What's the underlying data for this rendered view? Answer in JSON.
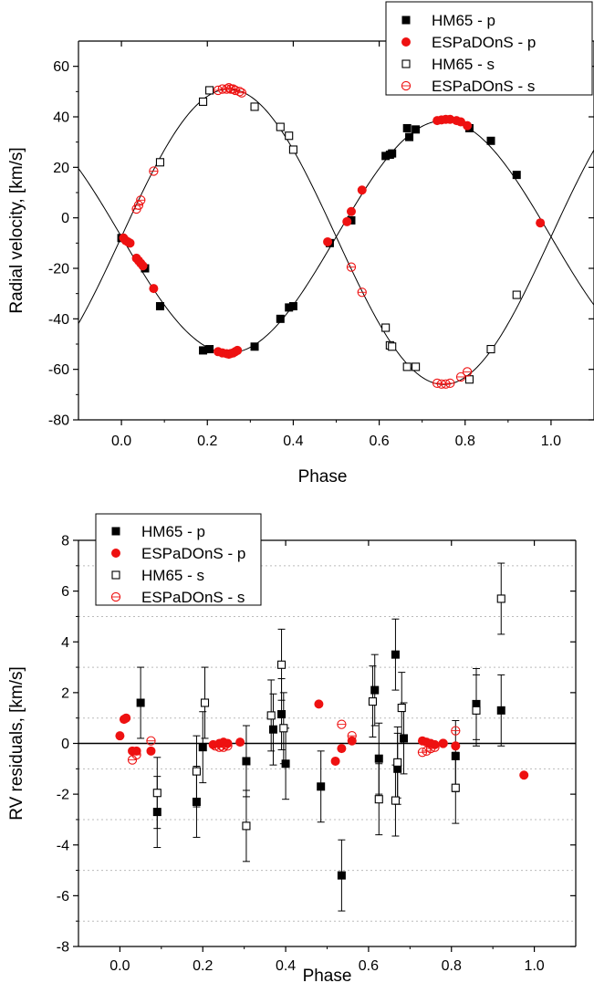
{
  "chart_data": [
    {
      "type": "scatter",
      "xlabel": "Phase",
      "ylabel": "Radial velocity, [km/s]",
      "xlim": [
        -0.1,
        1.1
      ],
      "ylim": [
        -80,
        70
      ],
      "x_ticks": [
        0.0,
        0.2,
        0.4,
        0.6,
        0.8,
        1.0
      ],
      "x_tick_labels": [
        "0.0",
        "0.2",
        "0.4",
        "0.6",
        "0.8",
        "1.0"
      ],
      "y_ticks": [
        -80,
        -60,
        -40,
        -20,
        0,
        20,
        40,
        60
      ],
      "y_tick_labels": [
        "-80",
        "-60",
        "-40",
        "-20",
        "0",
        "20",
        "40",
        "60"
      ],
      "grid": false,
      "legend_position": "top-right",
      "model_curves": {
        "gamma": -7.5,
        "primary_amplitude": 46.0,
        "secondary_amplitude": 58.5
      },
      "series": [
        {
          "name": "HM65 - p",
          "marker": "filled-square",
          "color": "#000000",
          "x": [
            0.0,
            0.055,
            0.09,
            0.19,
            0.205,
            0.31,
            0.37,
            0.39,
            0.4,
            0.485,
            0.535,
            0.615,
            0.625,
            0.63,
            0.665,
            0.67,
            0.685,
            0.81,
            0.86,
            0.92
          ],
          "y": [
            -8,
            -20,
            -35,
            -52.5,
            -52,
            -51,
            -40,
            -35.5,
            -35,
            -10,
            -1,
            24.5,
            25,
            25.5,
            35.5,
            32,
            35,
            35.5,
            30.5,
            17
          ]
        },
        {
          "name": "ESPaDOnS - p",
          "marker": "filled-circle",
          "color": "#ee1111",
          "x": [
            0.005,
            0.01,
            0.015,
            0.02,
            0.035,
            0.04,
            0.045,
            0.05,
            0.075,
            0.225,
            0.235,
            0.245,
            0.25,
            0.255,
            0.26,
            0.265,
            0.27,
            0.48,
            0.525,
            0.535,
            0.56,
            0.735,
            0.745,
            0.755,
            0.765,
            0.78,
            0.79,
            0.805,
            0.975
          ],
          "y": [
            -8,
            -9,
            -9.5,
            -10,
            -16,
            -17,
            -18,
            -19,
            -28,
            -53,
            -53.5,
            -53.8,
            -54,
            -53.7,
            -53.5,
            -53,
            -52.5,
            -9.5,
            -1.5,
            2.5,
            11,
            38.5,
            38.8,
            39,
            39,
            38.5,
            38,
            36.5,
            -2
          ]
        },
        {
          "name": "HM65 - s",
          "marker": "open-square",
          "color": "#000000",
          "x": [
            0.09,
            0.19,
            0.205,
            0.31,
            0.37,
            0.39,
            0.4,
            0.615,
            0.625,
            0.63,
            0.665,
            0.685,
            0.81,
            0.86,
            0.92
          ],
          "y": [
            22,
            46,
            50.5,
            44,
            36,
            32.5,
            27,
            -43.5,
            -50.5,
            -51,
            -59,
            -59,
            -64,
            -52,
            -30.5
          ]
        },
        {
          "name": "ESPaDOnS - s",
          "marker": "open-circle",
          "color": "#ee1111",
          "x": [
            0.035,
            0.04,
            0.045,
            0.075,
            0.225,
            0.235,
            0.245,
            0.25,
            0.255,
            0.26,
            0.265,
            0.275,
            0.28,
            0.535,
            0.56,
            0.735,
            0.745,
            0.755,
            0.765,
            0.79,
            0.805
          ],
          "y": [
            3.5,
            5,
            7,
            18.5,
            50.5,
            51,
            51,
            51.5,
            51,
            51,
            50.5,
            50,
            49.5,
            -19.5,
            -29.5,
            -65.5,
            -65.8,
            -65.8,
            -65.5,
            -63,
            -61
          ]
        }
      ]
    },
    {
      "type": "scatter",
      "xlabel": "Phase",
      "ylabel": "RV residuals, [km/s]",
      "xlim": [
        -0.1,
        1.1
      ],
      "ylim": [
        -8,
        8
      ],
      "x_ticks": [
        0.0,
        0.2,
        0.4,
        0.6,
        0.8,
        1.0
      ],
      "x_tick_labels": [
        "0.0",
        "0.2",
        "0.4",
        "0.6",
        "0.8",
        "1.0"
      ],
      "y_ticks": [
        -8,
        -6,
        -4,
        -2,
        0,
        2,
        4,
        6,
        8
      ],
      "y_tick_labels": [
        "-8",
        "-6",
        "-4",
        "-2",
        "0",
        "2",
        "4",
        "6",
        "8"
      ],
      "grid": "dotted horizontal at odd values",
      "grid_values": [
        -7,
        -5,
        -3,
        -1,
        1,
        3,
        5,
        7
      ],
      "zero_line": true,
      "legend_position": "top-left",
      "error_bar_km_s": 1.4,
      "series": [
        {
          "name": "HM65 - p",
          "marker": "filled-square",
          "color": "#000000",
          "error_bars": true,
          "x": [
            0.05,
            0.09,
            0.185,
            0.2,
            0.305,
            0.37,
            0.39,
            0.4,
            0.485,
            0.535,
            0.615,
            0.625,
            0.665,
            0.67,
            0.685,
            0.81,
            0.86,
            0.92
          ],
          "y": [
            1.6,
            -2.7,
            -2.3,
            -0.15,
            -0.7,
            0.55,
            1.15,
            -0.8,
            -1.7,
            -5.2,
            2.1,
            -0.6,
            3.5,
            -1.0,
            0.2,
            -0.5,
            1.55,
            1.3
          ]
        },
        {
          "name": "ESPaDOnS - p",
          "marker": "filled-circle",
          "color": "#ee1111",
          "error_bars": false,
          "x": [
            0.0,
            0.01,
            0.015,
            0.03,
            0.04,
            0.075,
            0.225,
            0.24,
            0.25,
            0.26,
            0.29,
            0.48,
            0.52,
            0.535,
            0.56,
            0.73,
            0.74,
            0.75,
            0.76,
            0.78,
            0.81,
            0.975
          ],
          "y": [
            0.3,
            0.95,
            1.0,
            -0.3,
            -0.3,
            -0.3,
            -0.05,
            0.0,
            0.05,
            0.0,
            0.05,
            1.55,
            -0.7,
            -0.2,
            0.1,
            0.1,
            0.05,
            0.0,
            -0.05,
            0.0,
            -0.1,
            -1.25
          ]
        },
        {
          "name": "HM65 - s",
          "marker": "open-square",
          "color": "#000000",
          "error_bars": true,
          "x": [
            0.09,
            0.185,
            0.205,
            0.305,
            0.365,
            0.39,
            0.395,
            0.61,
            0.625,
            0.665,
            0.67,
            0.68,
            0.81,
            0.86,
            0.92
          ],
          "y": [
            -1.95,
            -1.1,
            1.6,
            -3.25,
            1.1,
            3.1,
            0.6,
            1.65,
            -2.2,
            -2.25,
            -0.75,
            1.4,
            -1.75,
            1.3,
            5.7
          ]
        },
        {
          "name": "ESPaDOnS - s",
          "marker": "open-circle",
          "color": "#ee1111",
          "error_bars": false,
          "x": [
            0.03,
            0.04,
            0.075,
            0.23,
            0.24,
            0.245,
            0.25,
            0.255,
            0.26,
            0.535,
            0.56,
            0.73,
            0.74,
            0.75,
            0.76,
            0.78,
            0.81
          ],
          "y": [
            -0.65,
            -0.45,
            0.1,
            -0.1,
            -0.15,
            -0.1,
            -0.15,
            -0.05,
            -0.1,
            0.75,
            0.3,
            -0.35,
            -0.3,
            -0.2,
            -0.15,
            0.0,
            0.5
          ]
        }
      ]
    }
  ]
}
